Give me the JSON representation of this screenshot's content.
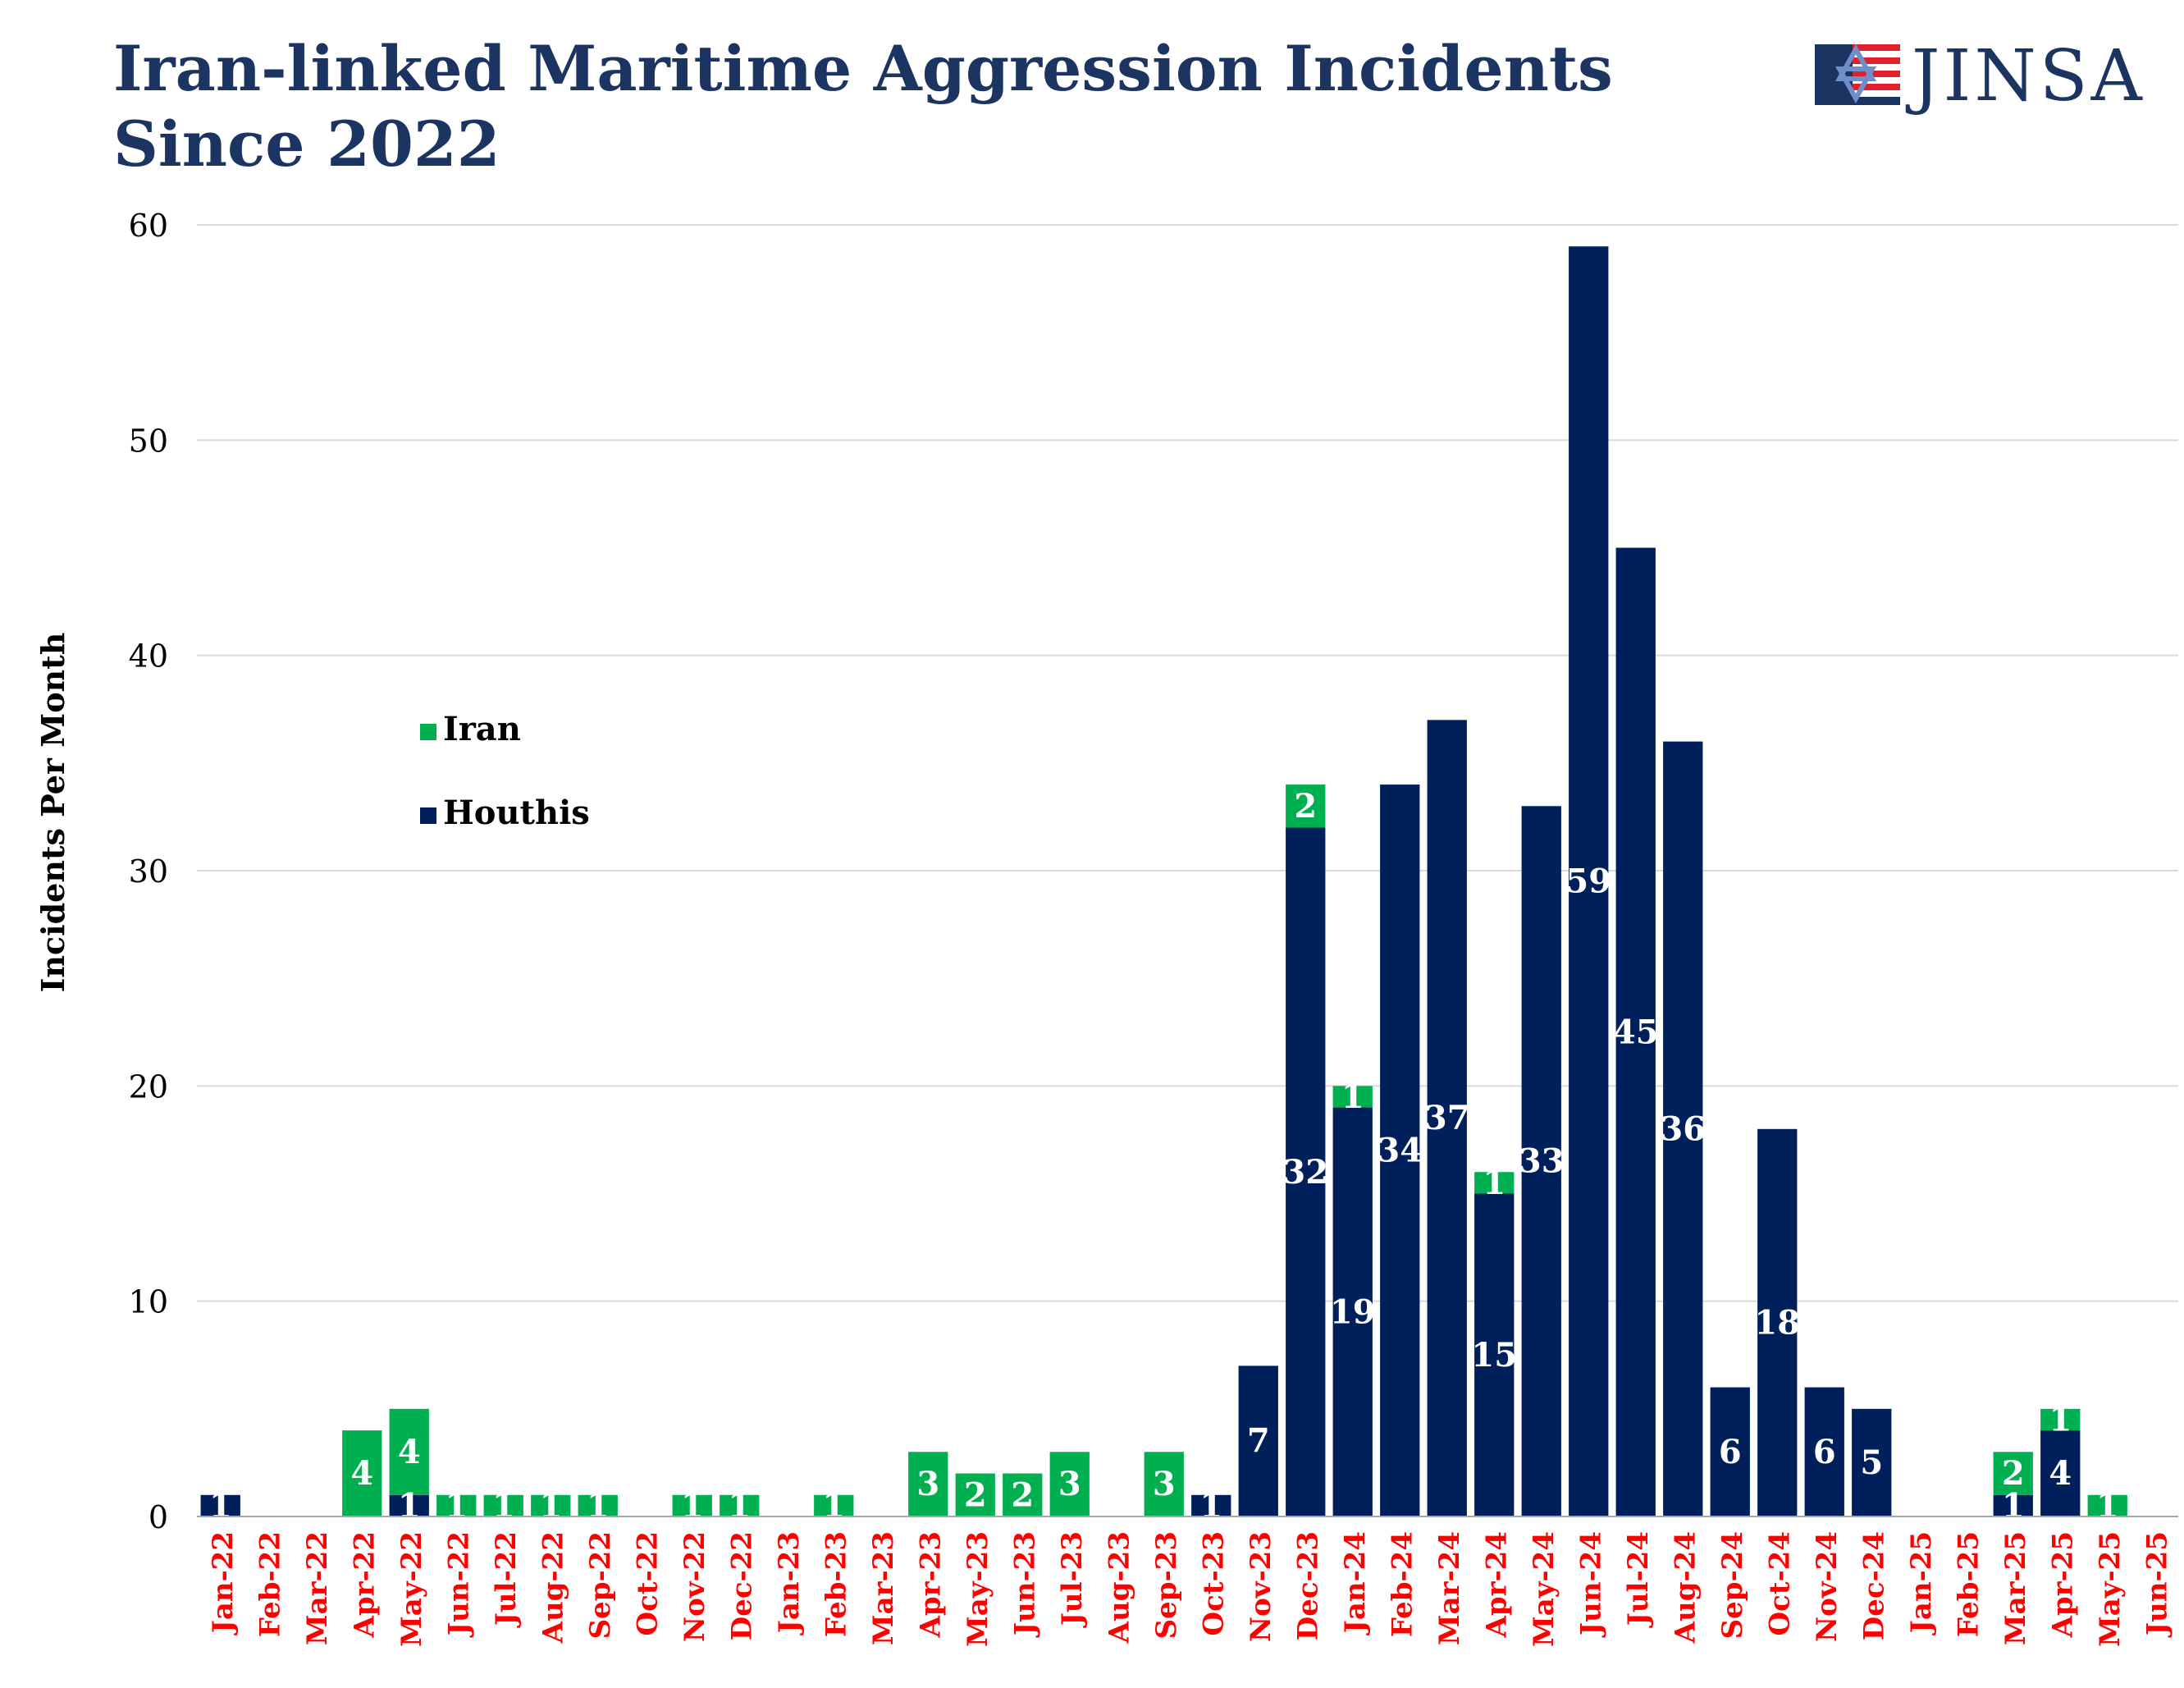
{
  "header": {
    "title_line1": "Iran-linked Maritime Aggression Incidents",
    "title_line2": "Since 2022",
    "logo_text": "JINSA"
  },
  "chart_data": {
    "type": "bar",
    "stacked": true,
    "title": "Iran-linked Maritime Aggression Incidents Since 2022",
    "xlabel": "",
    "ylabel": "Incidents Per Month",
    "ylim": [
      0,
      60
    ],
    "yticks": [
      0,
      10,
      20,
      30,
      40,
      50,
      60
    ],
    "grid": true,
    "legend_position": "top-left",
    "categories": [
      "Jan-22",
      "Feb-22",
      "Mar-22",
      "Apr-22",
      "May-22",
      "Jun-22",
      "Jul-22",
      "Aug-22",
      "Sep-22",
      "Oct-22",
      "Nov-22",
      "Dec-22",
      "Jan-23",
      "Feb-23",
      "Mar-23",
      "Apr-23",
      "May-23",
      "Jun-23",
      "Jul-23",
      "Aug-23",
      "Sep-23",
      "Oct-23",
      "Nov-23",
      "Dec-23",
      "Jan-24",
      "Feb-24",
      "Mar-24",
      "Apr-24",
      "May-24",
      "Jun-24",
      "Jul-24",
      "Aug-24",
      "Sep-24",
      "Oct-24",
      "Nov-24",
      "Dec-24",
      "Jan-25",
      "Feb-25",
      "Mar-25",
      "Apr-25",
      "May-25",
      "Jun-25"
    ],
    "series": [
      {
        "name": "Houthis",
        "color": "#00205b",
        "values": [
          1,
          0,
          0,
          0,
          1,
          0,
          0,
          0,
          0,
          0,
          0,
          0,
          0,
          0,
          0,
          0,
          0,
          0,
          0,
          0,
          0,
          1,
          7,
          32,
          19,
          34,
          37,
          15,
          33,
          59,
          45,
          36,
          6,
          18,
          6,
          5,
          0,
          0,
          1,
          4,
          0,
          0
        ]
      },
      {
        "name": "Iran",
        "color": "#00b050",
        "values": [
          0,
          0,
          0,
          4,
          4,
          1,
          1,
          1,
          1,
          0,
          1,
          1,
          0,
          1,
          0,
          3,
          2,
          2,
          3,
          0,
          3,
          0,
          0,
          2,
          1,
          0,
          0,
          1,
          0,
          0,
          0,
          0,
          0,
          0,
          0,
          0,
          0,
          0,
          2,
          1,
          1,
          0
        ]
      }
    ],
    "legend": [
      "Iran",
      "Houthis"
    ],
    "colors": {
      "tick_label_x": "#ff0000",
      "axis_text": "#000000",
      "title": "#1c3461",
      "grid": "#d9d9d9",
      "bar_label": "#ffffff"
    }
  }
}
